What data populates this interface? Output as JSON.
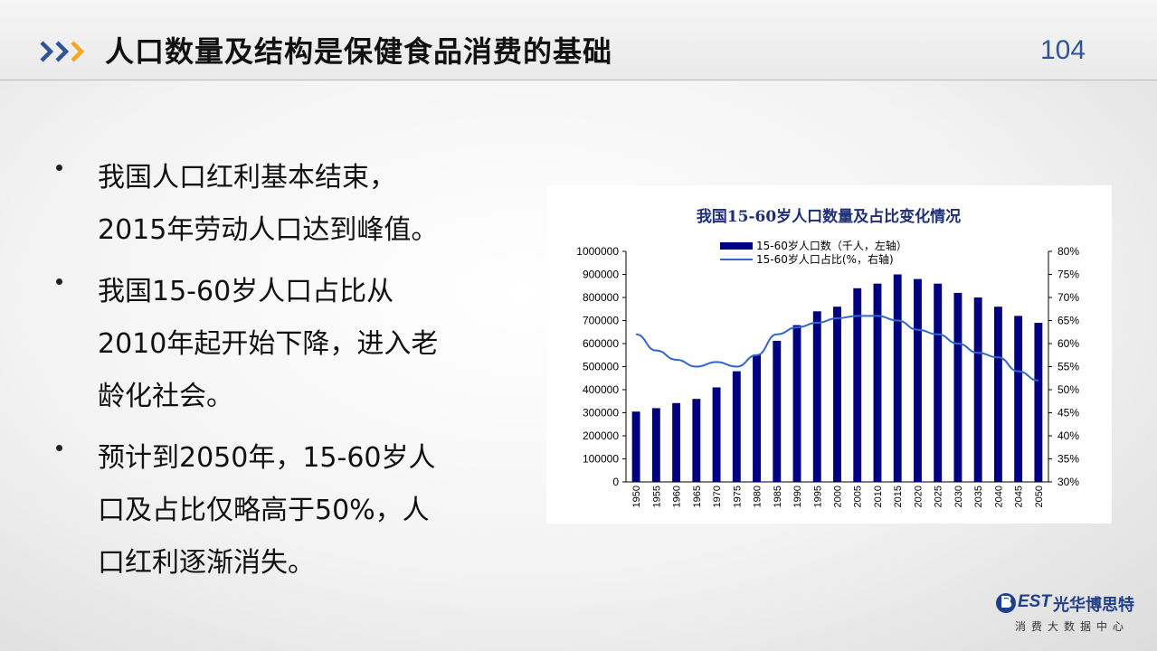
{
  "header": {
    "title": "人口数量及结构是保健食品消费的基础",
    "page_number": "104"
  },
  "bullets": [
    {
      "lines": [
        "我国人口红利基本结束，",
        "2015年劳动人口达到峰值。"
      ]
    },
    {
      "lines": [
        "我国15-60岁人口占比从",
        "2010年起开始下降，进入老",
        "龄化社会。"
      ]
    },
    {
      "lines": [
        "预计到2050年，15-60岁人",
        "口及占比仅略高于50%，人",
        "口红利逐渐消失。"
      ]
    }
  ],
  "colors": {
    "accent_blue": "#2f5597",
    "accent_orange": "#f5a623",
    "bar_color": "#000080",
    "line_color": "#3366cc",
    "chart_title_color": "#1f2e7a"
  },
  "chart_data": {
    "type": "bar",
    "title": "我国15-60岁人口数量及占比变化情况",
    "categories": [
      "1950",
      "1955",
      "1960",
      "1965",
      "1970",
      "1975",
      "1980",
      "1985",
      "1990",
      "1995",
      "2000",
      "2005",
      "2010",
      "2015",
      "2020",
      "2025",
      "2030",
      "2035",
      "2040",
      "2045",
      "2050"
    ],
    "series": [
      {
        "name": "15-60岁人口数（千人，左轴）",
        "type": "bar",
        "axis": "left",
        "values": [
          305000,
          320000,
          342000,
          360000,
          410000,
          480000,
          552000,
          612000,
          680000,
          740000,
          760000,
          840000,
          860000,
          900000,
          880000,
          860000,
          820000,
          800000,
          760000,
          720000,
          690000
        ]
      },
      {
        "name": "15-60岁人口占比(%，右轴)",
        "type": "line",
        "axis": "right",
        "values": [
          62,
          58.5,
          56.5,
          55,
          56,
          55,
          57.5,
          62,
          63.5,
          64.5,
          65.5,
          66,
          66,
          65,
          63,
          62,
          60,
          58,
          57,
          54,
          52
        ]
      }
    ],
    "y_left": {
      "min": 0,
      "max": 1000000,
      "step": 100000,
      "tick_labels": [
        "0",
        "100000",
        "200000",
        "300000",
        "400000",
        "500000",
        "600000",
        "700000",
        "800000",
        "900000",
        "1000000"
      ]
    },
    "y_right": {
      "min": 30,
      "max": 80,
      "step": 5,
      "tick_labels": [
        "30%",
        "35%",
        "40%",
        "45%",
        "50%",
        "55%",
        "60%",
        "65%",
        "70%",
        "75%",
        "80%"
      ]
    },
    "legend": {
      "position": "top"
    },
    "grid": false
  },
  "logo": {
    "mark": "B",
    "brand_latin": "EST",
    "brand_cn": "光华博思特",
    "tagline": "消费大数据中心"
  }
}
